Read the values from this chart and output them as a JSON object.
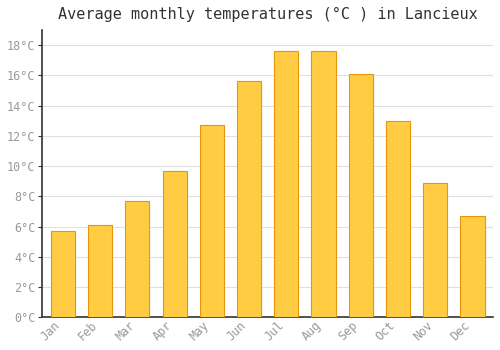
{
  "title": "Average monthly temperatures (°C ) in Lancieux",
  "months": [
    "Jan",
    "Feb",
    "Mar",
    "Apr",
    "May",
    "Jun",
    "Jul",
    "Aug",
    "Sep",
    "Oct",
    "Nov",
    "Dec"
  ],
  "values": [
    5.7,
    6.1,
    7.7,
    9.7,
    12.7,
    15.6,
    17.6,
    17.6,
    16.1,
    13.0,
    8.9,
    6.7
  ],
  "bar_color": "#FFCC44",
  "bar_edge_color": "#E8960A",
  "background_color": "#FFFFFF",
  "grid_color": "#E0E0E0",
  "ylim": [
    0,
    19
  ],
  "yticks": [
    0,
    2,
    4,
    6,
    8,
    10,
    12,
    14,
    16,
    18
  ],
  "title_fontsize": 11,
  "tick_fontsize": 8.5,
  "tick_color": "#999999",
  "spine_color": "#333333",
  "font_family": "monospace"
}
